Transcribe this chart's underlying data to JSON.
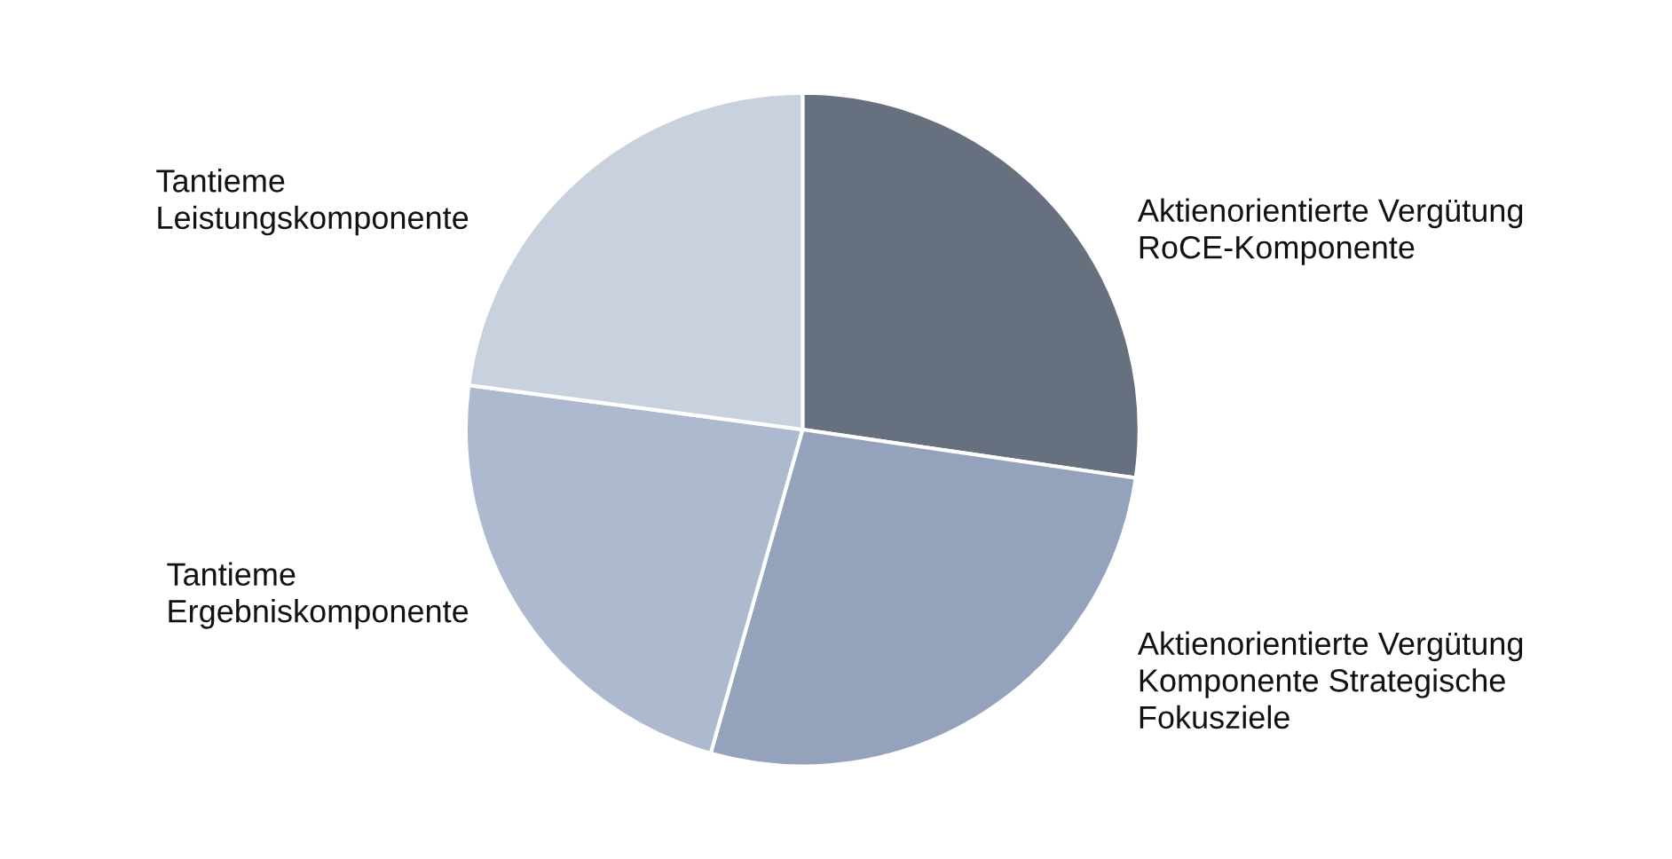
{
  "chart_data": {
    "type": "pie",
    "categories": [
      "Aktienorientierte Vergütung\nRoCE-Komponente",
      "Aktienorientierte Vergütung\nKomponente Strategische\nFokusziele",
      "Tantieme\nErgebniskomponente",
      "Tantieme\nLeistungskomponente"
    ],
    "values": [
      27.3,
      27.1,
      22.7,
      22.9
    ],
    "colors": [
      "#66707f",
      "#94a3bb",
      "#adb9cf",
      "#c9d0de"
    ],
    "legend": false
  }
}
